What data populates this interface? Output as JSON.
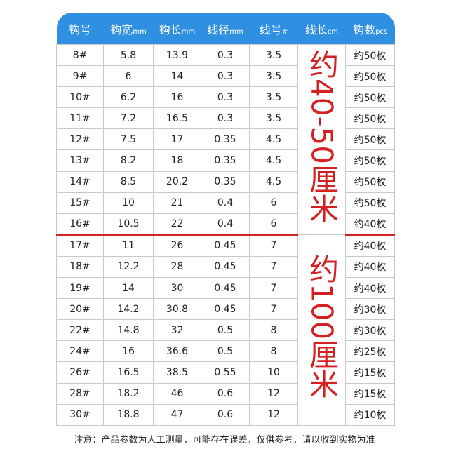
{
  "headers": [
    {
      "label": "钩号",
      "unit": ""
    },
    {
      "label": "钩宽",
      "unit": "mm"
    },
    {
      "label": "钩长",
      "unit": "mm"
    },
    {
      "label": "线径",
      "unit": "mm"
    },
    {
      "label": "线号",
      "unit": "#"
    },
    {
      "label": "线长",
      "unit": "cm"
    },
    {
      "label": "钩数",
      "unit": "pcs"
    }
  ],
  "line_length_groups": [
    "约40-50厘米",
    "约100厘米"
  ],
  "rows": [
    [
      "8#",
      "5.8",
      "13.9",
      "0.3",
      "3.5",
      "约50枚"
    ],
    [
      "9#",
      "6",
      "14",
      "0.3",
      "3.5",
      "约50枚"
    ],
    [
      "10#",
      "6.2",
      "16",
      "0.3",
      "3.5",
      "约50枚"
    ],
    [
      "11#",
      "7.2",
      "16.5",
      "0.3",
      "3.5",
      "约50枚"
    ],
    [
      "12#",
      "7.5",
      "17",
      "0.35",
      "4.5",
      "约50枚"
    ],
    [
      "13#",
      "8.2",
      "18",
      "0.35",
      "4.5",
      "约50枚"
    ],
    [
      "14#",
      "8.5",
      "20.2",
      "0.35",
      "4.5",
      "约50枚"
    ],
    [
      "15#",
      "10",
      "21",
      "0.4",
      "6",
      "约50枚"
    ],
    [
      "16#",
      "10.5",
      "22",
      "0.4",
      "6",
      "约40枚"
    ],
    [
      "17#",
      "11",
      "26",
      "0.45",
      "7",
      "约40枚"
    ],
    [
      "18#",
      "12.2",
      "28",
      "0.45",
      "7",
      "约40枚"
    ],
    [
      "19#",
      "14",
      "30",
      "0.45",
      "7",
      "约40枚"
    ],
    [
      "20#",
      "14.2",
      "30.8",
      "0.45",
      "7",
      "约30枚"
    ],
    [
      "22#",
      "14.8",
      "32",
      "0.5",
      "8",
      "约30枚"
    ],
    [
      "24#",
      "16",
      "36.6",
      "0.5",
      "8",
      "约25枚"
    ],
    [
      "26#",
      "16.5",
      "38.5",
      "0.55",
      "10",
      "约15枚"
    ],
    [
      "28#",
      "18.2",
      "46",
      "0.6",
      "12",
      "约15枚"
    ],
    [
      "30#",
      "18.8",
      "47",
      "0.6",
      "12",
      "约10枚"
    ]
  ],
  "note": "注意：产品参数为人工测量，可能存在误差，仅供参考，请以收到实物为准",
  "colors": {
    "header": "#2f8fe0",
    "accent": "#d42020"
  }
}
